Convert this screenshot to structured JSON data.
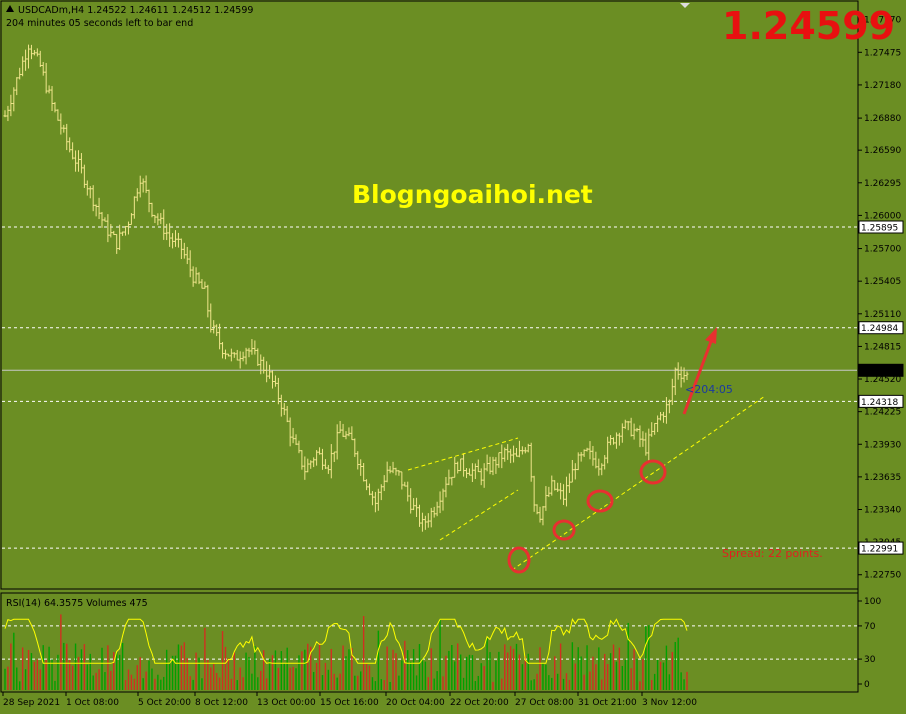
{
  "header": {
    "symbol_line": "USDCADm,H4  1.24522 1.24611 1.24512 1.24599",
    "timer_line": "204 minutes 05 seconds left to bar end"
  },
  "big_price": "1.24599",
  "watermark": "Blogngoaihoi.net",
  "countdown": "<204:05",
  "spread": "Spread: 22 points.",
  "rsi_label": "RSI(14) 64.3575  Volumes 475",
  "colors": {
    "background": "#6b8e23",
    "bar": "#f0e68c",
    "rsi_line": "#ffff00",
    "vol_up": "#00a000",
    "vol_down": "#d03020",
    "big_price": "#e81010",
    "watermark": "#ffff00",
    "markup": "#e83030"
  },
  "chart_data": {
    "type": "ohlc",
    "symbol": "USDCADm",
    "timeframe": "H4",
    "ylim": [
      1.2263,
      1.2793
    ],
    "y_ticks": [
      "1.27770",
      "1.27475",
      "1.27180",
      "1.26880",
      "1.26590",
      "1.26295",
      "1.26000",
      "1.25700",
      "1.25405",
      "1.25110",
      "1.24815",
      "1.24520",
      "1.24225",
      "1.23930",
      "1.23635",
      "1.23340",
      "1.23045",
      "1.22750"
    ],
    "highlighted_levels": [
      "1.25895",
      "1.24984",
      "1.24599",
      "1.24318",
      "1.22991"
    ],
    "x_ticks": [
      "28 Sep 2021",
      "1 Oct 08:00",
      "5 Oct 20:00",
      "8 Oct 12:00",
      "13 Oct 00:00",
      "15 Oct 16:00",
      "20 Oct 04:00",
      "22 Oct 20:00",
      "27 Oct 08:00",
      "31 Oct 21:00",
      "3 Nov 12:00"
    ],
    "close_path": [
      [
        0,
        1.269
      ],
      [
        8,
        1.2755
      ],
      [
        12,
        1.2735
      ],
      [
        16,
        1.27
      ],
      [
        22,
        1.266
      ],
      [
        26,
        1.264
      ],
      [
        30,
        1.2615
      ],
      [
        34,
        1.259
      ],
      [
        38,
        1.2575
      ],
      [
        42,
        1.2595
      ],
      [
        46,
        1.2635
      ],
      [
        50,
        1.2605
      ],
      [
        56,
        1.258
      ],
      [
        60,
        1.257
      ],
      [
        64,
        1.2545
      ],
      [
        68,
        1.253
      ],
      [
        70,
        1.25
      ],
      [
        74,
        1.248
      ],
      [
        78,
        1.247
      ],
      [
        82,
        1.248
      ],
      [
        86,
        1.247
      ],
      [
        90,
        1.2455
      ],
      [
        94,
        1.243
      ],
      [
        98,
        1.2395
      ],
      [
        102,
        1.237
      ],
      [
        106,
        1.2385
      ],
      [
        110,
        1.2375
      ],
      [
        114,
        1.2405
      ],
      [
        118,
        1.2395
      ],
      [
        122,
        1.2365
      ],
      [
        126,
        1.234
      ],
      [
        130,
        1.237
      ],
      [
        134,
        1.2365
      ],
      [
        138,
        1.234
      ],
      [
        142,
        1.232
      ],
      [
        146,
        1.2335
      ],
      [
        150,
        1.236
      ],
      [
        154,
        1.2375
      ],
      [
        158,
        1.237
      ],
      [
        162,
        1.2365
      ],
      [
        166,
        1.2375
      ],
      [
        170,
        1.2385
      ],
      [
        174,
        1.238
      ],
      [
        178,
        1.2395
      ],
      [
        180,
        1.234
      ],
      [
        182,
        1.233
      ],
      [
        186,
        1.2355
      ],
      [
        190,
        1.2345
      ],
      [
        194,
        1.2375
      ],
      [
        198,
        1.2385
      ],
      [
        202,
        1.2375
      ],
      [
        206,
        1.2395
      ],
      [
        210,
        1.241
      ],
      [
        214,
        1.2405
      ],
      [
        218,
        1.239
      ],
      [
        222,
        1.2415
      ],
      [
        226,
        1.243
      ],
      [
        228,
        1.246
      ],
      [
        232,
        1.2455
      ]
    ],
    "rsi": {
      "value": 64.3575,
      "levels": [
        70,
        30
      ],
      "ticks": [
        "100",
        "70",
        "30",
        "0"
      ]
    },
    "volumes": {
      "last": 475
    }
  }
}
